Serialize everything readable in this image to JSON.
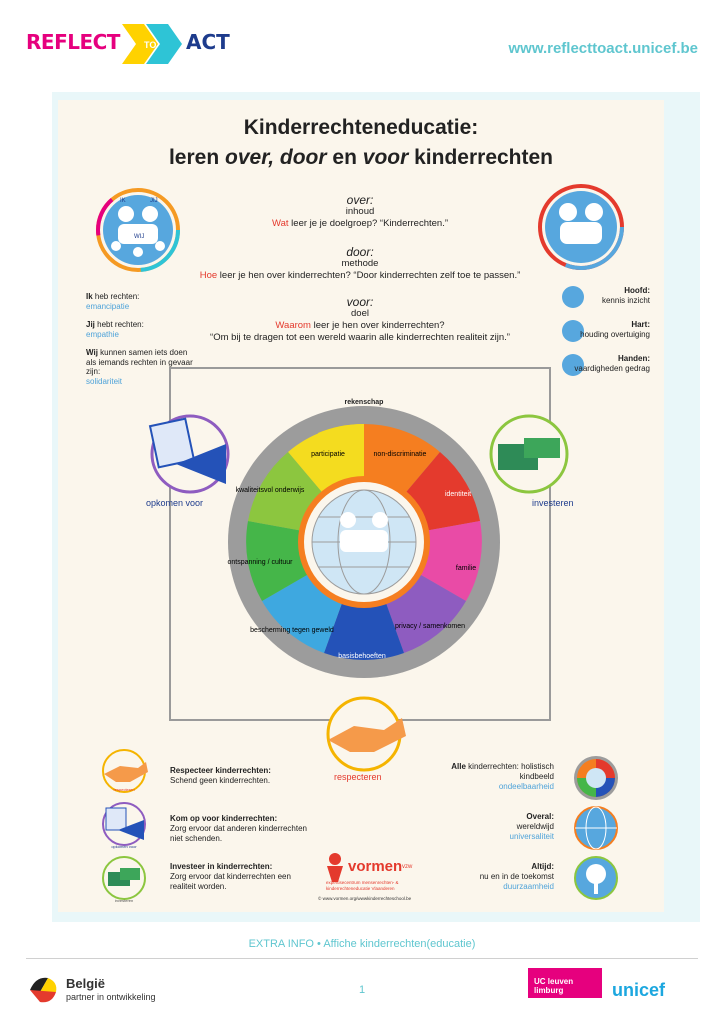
{
  "header": {
    "brand_left": "REFLECT",
    "brand_to": "TO",
    "brand_right": "ACT",
    "url": "www.reflecttoact.unicef.be"
  },
  "poster": {
    "title_line1": "Kinderrechteneducatie:",
    "title_leren": "leren",
    "title_over": "over,",
    "title_door": "door",
    "title_en": "en",
    "title_voor": "voor",
    "title_kinderrechten": "kinderrechten",
    "over": {
      "heading": "over:",
      "sub": "inhoud",
      "q_red": "Wat",
      "q_rest": " leer je je doelgroep? “Kinderrechten.”"
    },
    "door": {
      "heading": "door:",
      "sub": "methode",
      "q_red": "Hoe",
      "q_rest": " leer je hen over kinderrechten? “Door kinderrechten zelf toe te passen.”"
    },
    "voor": {
      "heading": "voor:",
      "sub": "doel",
      "q_red": "Waarom",
      "q_rest": " leer je hen over kinderrechten?",
      "answer": "“Om bij te dragen tot een wereld waarin alle kinderrechten realiteit zijn.”"
    },
    "left_logo": {
      "ik": "IK",
      "jij": "JIJ",
      "wij": "WIJ"
    },
    "left_list": [
      {
        "bold": "Ik",
        "text": " heb rechten:",
        "sub": "emancipatie"
      },
      {
        "bold": "Jij",
        "text": " hebt rechten:",
        "sub": "empathie"
      },
      {
        "bold": "Wij",
        "text": " kunnen samen iets doen als iemands rechten in gevaar zijn:",
        "sub": "solidariteit"
      }
    ],
    "right_list": [
      {
        "bold": "Hoofd:",
        "text": "kennis inzicht"
      },
      {
        "bold": "Hart:",
        "text": "houding overtuiging"
      },
      {
        "bold": "Handen:",
        "text": "vaardigheden gedrag"
      }
    ],
    "wheel_outer": "rekenschap",
    "wheel": [
      "participatie",
      "non-discriminatie",
      "identiteit",
      "familie",
      "privacy / samenkomen",
      "basisbehoeften",
      "bescherming tegen geweld",
      "ontspanning / cultuur",
      "kwaliteitsvol onderwijs"
    ],
    "actions": {
      "opkomen": "opkomen voor",
      "investeren": "investeren",
      "respecteren": "respecteren"
    },
    "bottom_left": [
      {
        "small": "respecteren",
        "bold": "Respecteer kinderrechten:",
        "text": "Schend geen kinderrechten."
      },
      {
        "small": "opkomen voor",
        "bold": "Kom op voor kinderrechten:",
        "text": "Zorg ervoor dat anderen kinderrechten niet schenden."
      },
      {
        "small": "investeren",
        "bold": "Investeer in kinderrechten:",
        "text": "Zorg ervoor dat kinderrechten een realiteit worden."
      }
    ],
    "bottom_right": [
      {
        "bold": "Alle",
        "text": " kinderrechten: holistisch kindbeeld",
        "sub": "ondeelbaarheid"
      },
      {
        "bold": "Overal:",
        "text": "wereldwijd",
        "sub": "universaliteit"
      },
      {
        "bold": "Altijd:",
        "text": "nu en in de toekomst",
        "sub": "duurzaamheid"
      }
    ],
    "vormen": {
      "name": "vormen",
      "suffix": "vzw",
      "tagline": "expertisecentrum mensenrechten- & kinderrechteneducatie Vlaanderen",
      "url": "© www.vormen.org/wwwkinderrechteschool.be"
    }
  },
  "footer": {
    "extra": "EXTRA INFO • Affiche kinderrechten(educatie)",
    "page": "1",
    "belgie": "België",
    "belgie_sub": "partner in ontwikkeling",
    "uc": "UC leuven limburg",
    "unicef": "unicef"
  },
  "colors": {
    "accent": "#5fc6cf",
    "red": "#e43a2d",
    "pink": "#e6007e",
    "blue": "#1d3b8c"
  }
}
